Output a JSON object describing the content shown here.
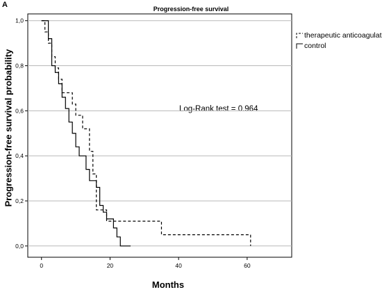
{
  "panel_label": "A",
  "chart_data": {
    "type": "line",
    "subtype": "kaplan-meier step curves",
    "title": "Progression-free survival",
    "xlabel": "Months",
    "ylabel": "Progression-free survival probability",
    "xlim": [
      -4,
      73
    ],
    "ylim": [
      -0.05,
      1.03
    ],
    "x_ticks": [
      0,
      20,
      40,
      60
    ],
    "y_ticks": [
      0.0,
      0.2,
      0.4,
      0.6,
      0.8,
      1.0
    ],
    "y_tick_labels": [
      "0,0",
      "0,2",
      "0,4",
      "0,6",
      "0,8",
      "1,0"
    ],
    "grid": "horizontal",
    "legend_position": "top-right",
    "annotation": "Log-Rank test = 0.964",
    "series": [
      {
        "name": "therapeutic anticoagulation",
        "style": "dashed",
        "color": "#000000",
        "steps": [
          [
            0,
            1.0
          ],
          [
            1,
            0.95
          ],
          [
            2,
            0.9
          ],
          [
            3,
            0.84
          ],
          [
            4,
            0.79
          ],
          [
            5,
            0.74
          ],
          [
            6,
            0.68
          ],
          [
            9,
            0.63
          ],
          [
            10,
            0.58
          ],
          [
            12,
            0.52
          ],
          [
            14,
            0.42
          ],
          [
            15,
            0.32
          ],
          [
            16,
            0.16
          ],
          [
            19,
            0.11
          ],
          [
            35,
            0.05
          ],
          [
            61,
            0.0
          ]
        ]
      },
      {
        "name": "control",
        "style": "solid",
        "color": "#000000",
        "steps": [
          [
            0,
            1.0
          ],
          [
            2,
            0.92
          ],
          [
            3,
            0.8
          ],
          [
            4,
            0.77
          ],
          [
            5,
            0.72
          ],
          [
            6,
            0.66
          ],
          [
            7,
            0.61
          ],
          [
            8,
            0.55
          ],
          [
            9,
            0.5
          ],
          [
            10,
            0.44
          ],
          [
            11,
            0.4
          ],
          [
            13,
            0.34
          ],
          [
            14,
            0.29
          ],
          [
            16,
            0.26
          ],
          [
            17,
            0.18
          ],
          [
            18,
            0.15
          ],
          [
            19,
            0.12
          ],
          [
            21,
            0.08
          ],
          [
            22,
            0.04
          ],
          [
            23,
            0.0
          ],
          [
            26,
            0.0
          ]
        ]
      }
    ]
  }
}
